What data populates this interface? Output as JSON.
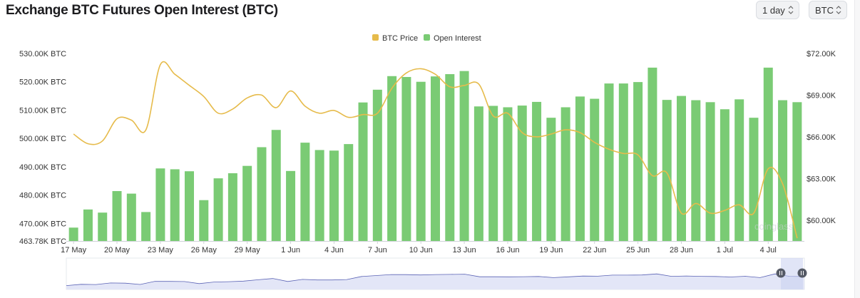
{
  "header": {
    "title": "Exchange BTC Futures Open Interest (BTC)",
    "range_select": "1 day",
    "unit_select": "BTC"
  },
  "colors": {
    "bars": "#7acb74",
    "price_line": "#e6bb4b",
    "navigator_line": "#5b63b5",
    "navigator_fill": "#e3e6f7"
  },
  "watermark_text": "coinglass",
  "chart_data": {
    "type": "bar",
    "legend": [
      "BTC Price",
      "Open Interest"
    ],
    "legend_position": "top-center",
    "grid": false,
    "x_tick_labels": [
      "17 May",
      "20 May",
      "23 May",
      "26 May",
      "29 May",
      "1 Jun",
      "4 Jun",
      "7 Jun",
      "10 Jun",
      "13 Jun",
      "16 Jun",
      "19 Jun",
      "22 Jun",
      "25 Jun",
      "28 Jun",
      "1 Jul",
      "4 Jul"
    ],
    "y_left_ticks": [
      "530.00K BTC",
      "520.00K BTC",
      "510.00K BTC",
      "500.00K BTC",
      "490.00K BTC",
      "480.00K BTC",
      "470.00K BTC",
      "463.78K BTC"
    ],
    "y_left_tick_values": [
      530000,
      520000,
      510000,
      500000,
      490000,
      480000,
      470000,
      463780
    ],
    "y_right_ticks": [
      "$72.00K",
      "$69.00K",
      "$66.00K",
      "$63.00K",
      "$60.00K"
    ],
    "y_right_tick_values": [
      72000,
      69000,
      66000,
      63000,
      60000
    ],
    "y_left_range": [
      463780,
      530000
    ],
    "y_right_range": [
      58500,
      72000
    ],
    "series": [
      {
        "name": "Open Interest",
        "type": "bar",
        "axis": "left",
        "values": [
          468500,
          474900,
          473800,
          481400,
          480500,
          474000,
          489400,
          489100,
          488400,
          478200,
          485900,
          487700,
          490300,
          496900,
          503000,
          488500,
          498500,
          495900,
          495700,
          498000,
          512700,
          517200,
          522000,
          521700,
          520000,
          521900,
          522700,
          523800,
          511300,
          511500,
          511000,
          511600,
          512900,
          507300,
          511000,
          514800,
          514000,
          519400,
          519400,
          519900,
          525000,
          513600,
          515000,
          513500,
          512800,
          510300,
          513800,
          507300,
          525000,
          513500,
          512800
        ]
      },
      {
        "name": "BTC Price",
        "type": "line",
        "axis": "right",
        "values": [
          66200,
          65500,
          65700,
          67300,
          67200,
          66500,
          71200,
          70500,
          69700,
          68900,
          67700,
          68000,
          68800,
          69000,
          68100,
          69300,
          68200,
          67700,
          67900,
          67400,
          67600,
          67700,
          69500,
          70600,
          70900,
          70500,
          69600,
          69700,
          69800,
          67500,
          67700,
          66300,
          66000,
          66200,
          66500,
          66300,
          65600,
          65100,
          64800,
          64700,
          63200,
          63400,
          60500,
          61200,
          60500,
          60700,
          61100,
          60500,
          63700,
          62600,
          58700
        ]
      }
    ]
  }
}
